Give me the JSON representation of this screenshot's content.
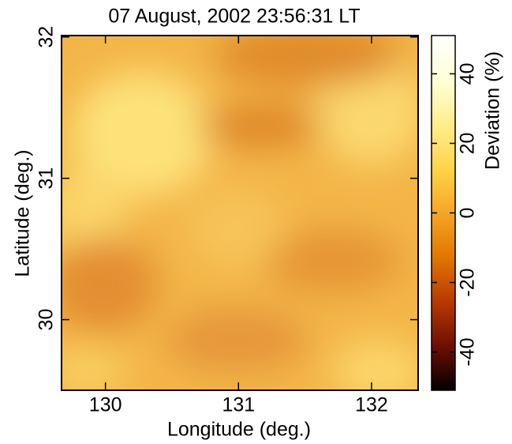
{
  "chart_data": {
    "type": "heatmap",
    "title": "07 August, 2002 23:56:31 LT",
    "x_label": "Longitude (deg.)",
    "y_label": "Latitude (deg.)",
    "colorbar_label": "Deviation (%)",
    "xlim": [
      129.67,
      132.35
    ],
    "xticks": [
      130,
      131,
      132
    ],
    "ylim": [
      29.5,
      32.01
    ],
    "yticks": [
      30,
      31,
      32
    ],
    "clim": [
      -51,
      51
    ],
    "cticks": [
      -40,
      -20,
      0,
      20,
      40
    ],
    "colormap": [
      "#000000",
      "#6e0f00",
      "#b83a00",
      "#e27600",
      "#f5a626",
      "#ffd44a",
      "#ffef8a",
      "#ffffd8",
      "#ffffff"
    ]
  }
}
